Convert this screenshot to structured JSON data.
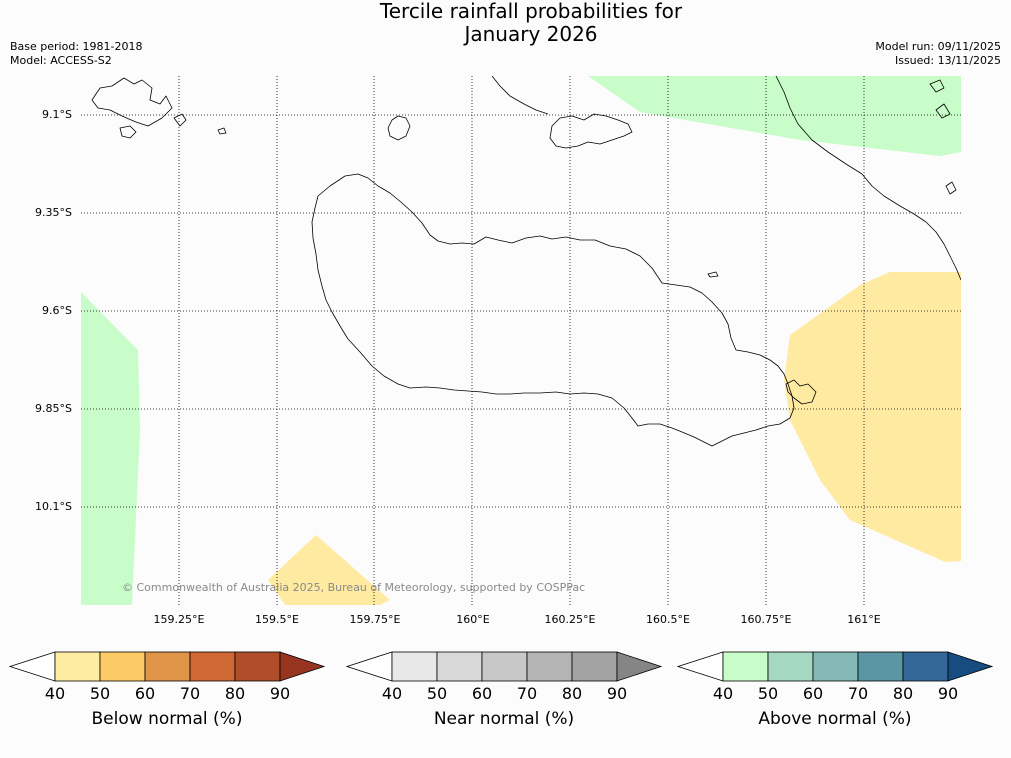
{
  "header": {
    "title_line1": "Tercile rainfall probabilities for",
    "title_line2": "January 2026",
    "base_period": "Base period: 1981-2018",
    "model": "Model: ACCESS-S2",
    "model_run": "Model run: 09/11/2025",
    "issued": "Issued: 13/11/2025"
  },
  "map": {
    "lat_labels": [
      "9.1°S",
      "9.35°S",
      "9.6°S",
      "9.85°S",
      "10.1°S"
    ],
    "lon_labels": [
      "159.25°E",
      "159.5°E",
      "159.75°E",
      "160°E",
      "160.25°E",
      "160.5°E",
      "160.75°E",
      "161°E"
    ],
    "copyright": "© Commonwealth of Australia 2025, Bureau of Meteorology, supported by COSPPac",
    "region_colors": {
      "above_normal_40_50": "#c8fcc8",
      "below_normal_40_50": "#feeaa0"
    }
  },
  "colorbars": [
    {
      "title": "Below normal (%)",
      "ticks": [
        "40",
        "50",
        "60",
        "70",
        "80",
        "90"
      ],
      "colors": [
        "#ffffff",
        "#feeda0",
        "#fdcb66",
        "#e09448",
        "#d06836",
        "#b04e2a",
        "#983521"
      ]
    },
    {
      "title": "Near normal (%)",
      "ticks": [
        "40",
        "50",
        "60",
        "70",
        "80",
        "90"
      ],
      "colors": [
        "#ffffff",
        "#e8e8e8",
        "#d8d8d8",
        "#c8c8c8",
        "#b4b4b4",
        "#a2a2a2",
        "#858585"
      ]
    },
    {
      "title": "Above normal (%)",
      "ticks": [
        "40",
        "50",
        "60",
        "70",
        "80",
        "90"
      ],
      "colors": [
        "#ffffff",
        "#c8fcc8",
        "#a4d8c0",
        "#84b8b4",
        "#5a96a4",
        "#336898",
        "#174c80"
      ]
    }
  ]
}
